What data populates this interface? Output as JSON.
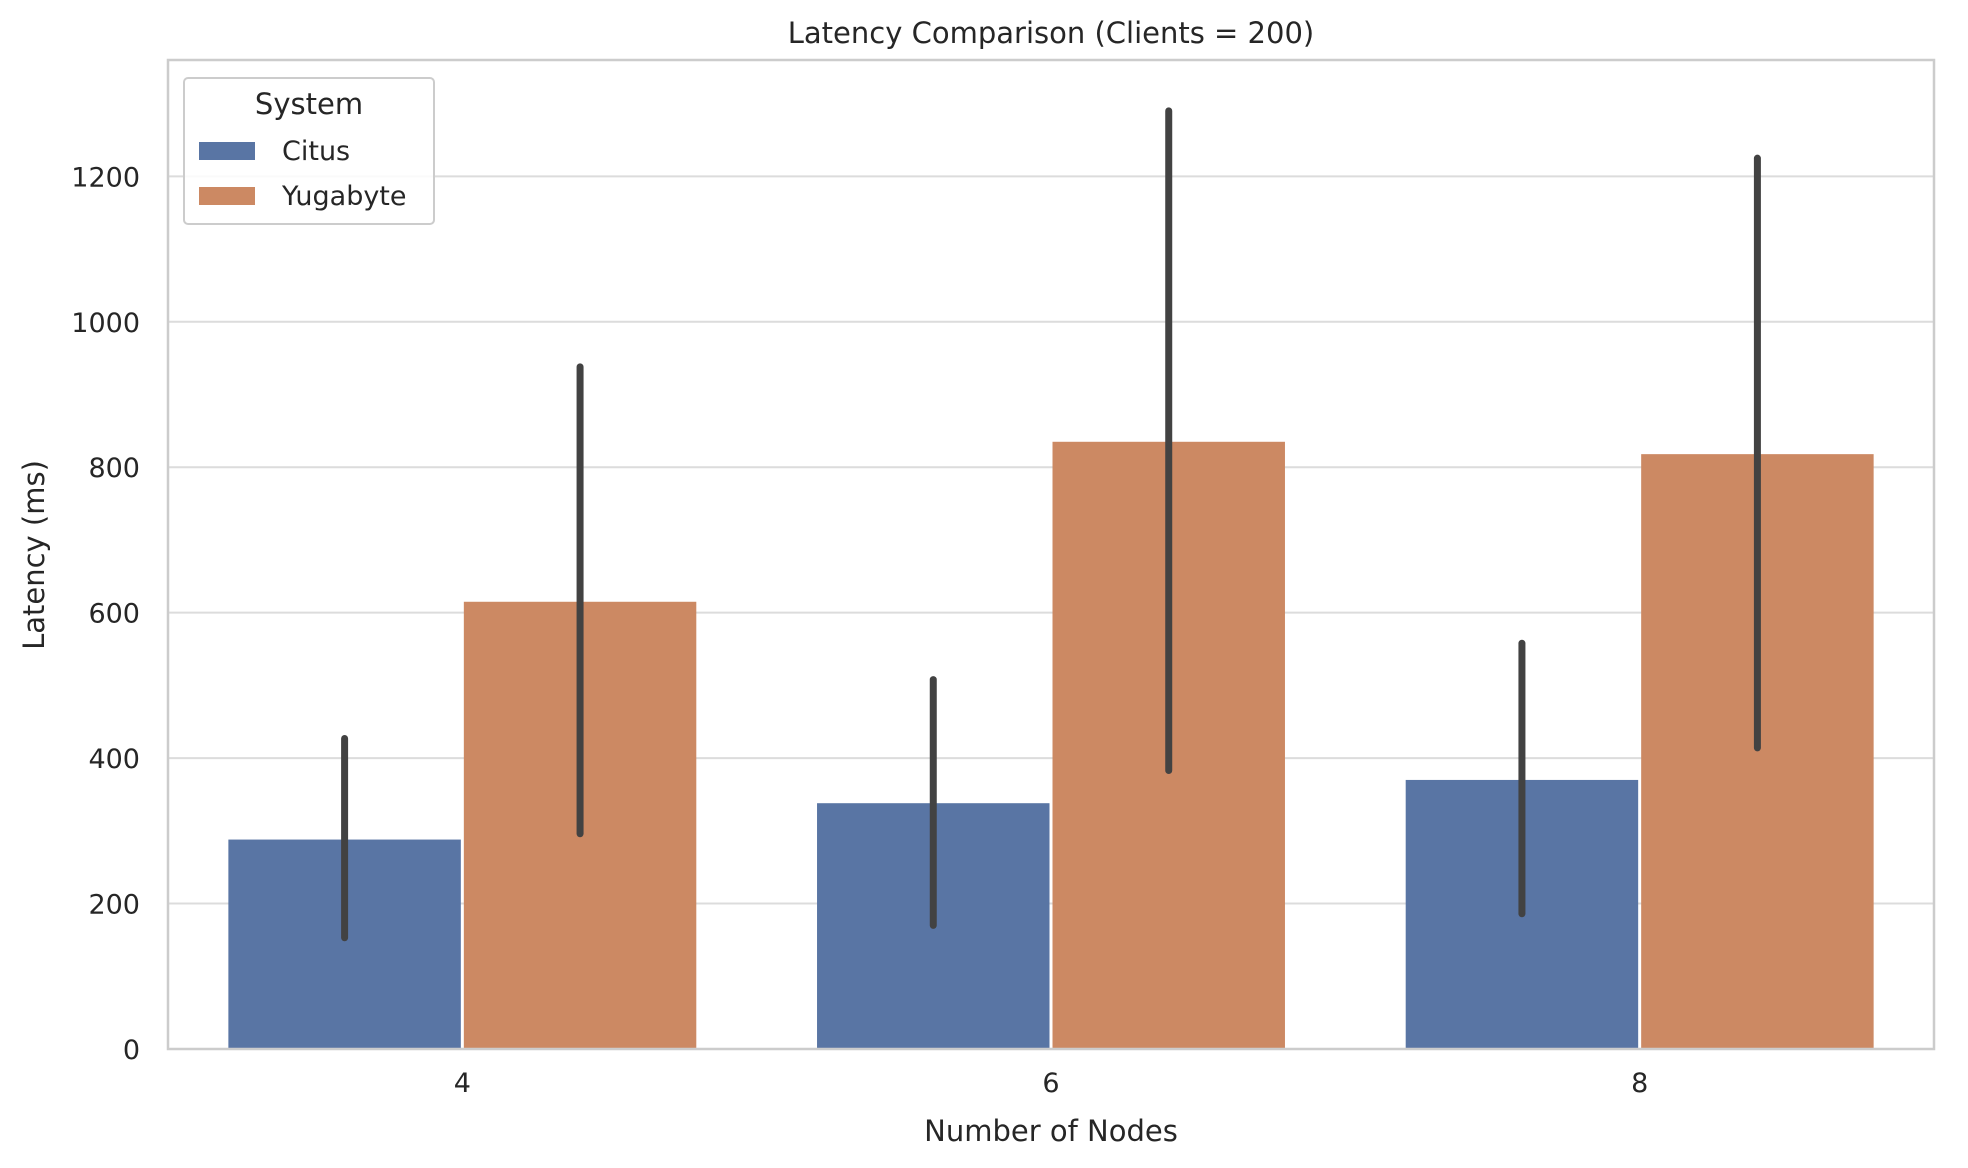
{
  "chart_data": {
    "type": "bar",
    "title": "Latency Comparison (Clients = 200)",
    "xlabel": "Number of Nodes",
    "ylabel": "Latency (ms)",
    "categories": [
      "4",
      "6",
      "8"
    ],
    "ylim": [
      0,
      1360
    ],
    "yticks": [
      0,
      200,
      400,
      600,
      800,
      1000,
      1200
    ],
    "grid": true,
    "legend": {
      "title": "System",
      "placement": "top-left"
    },
    "series": [
      {
        "name": "Citus",
        "color": "#5975a4",
        "values": [
          288,
          338,
          370
        ],
        "error_low": [
          153,
          170,
          186
        ],
        "error_high": [
          427,
          508,
          558
        ]
      },
      {
        "name": "Yugabyte",
        "color": "#cc8963",
        "values": [
          615,
          835,
          818
        ],
        "error_low": [
          296,
          383,
          414
        ],
        "error_high": [
          938,
          1290,
          1225
        ]
      }
    ]
  }
}
